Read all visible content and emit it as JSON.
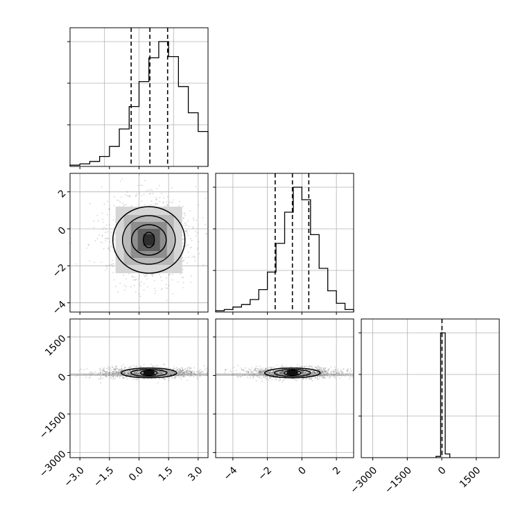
{
  "chart_data": [
    {
      "type": "histogram",
      "panel": "row0-col0",
      "parameter_index": 0,
      "xlim": [
        -3.5,
        3.5
      ],
      "bins": [
        {
          "x": -3.25,
          "count": 0.01
        },
        {
          "x": -2.75,
          "count": 0.02
        },
        {
          "x": -2.25,
          "count": 0.04
        },
        {
          "x": -1.75,
          "count": 0.08
        },
        {
          "x": -1.25,
          "count": 0.16
        },
        {
          "x": -0.75,
          "count": 0.3
        },
        {
          "x": -0.25,
          "count": 0.48
        },
        {
          "x": 0.25,
          "count": 0.68
        },
        {
          "x": 0.75,
          "count": 0.87
        },
        {
          "x": 1.25,
          "count": 1.0
        },
        {
          "x": 1.75,
          "count": 0.88
        },
        {
          "x": 2.25,
          "count": 0.64
        },
        {
          "x": 2.75,
          "count": 0.43
        },
        {
          "x": 3.25,
          "count": 0.28
        }
      ],
      "quantiles": [
        -0.4,
        0.55,
        1.45
      ],
      "grid": true
    },
    {
      "type": "heatmap",
      "panel": "row1-col0",
      "xlim": [
        -3.5,
        3.5
      ],
      "ylim": [
        -4.5,
        3
      ],
      "ylabel_ticks": [
        "−4",
        "−2",
        "0",
        "2"
      ],
      "yticks": [
        -4,
        -2,
        0,
        2
      ],
      "center": [
        0.5,
        -0.6
      ],
      "contour_radii": [
        [
          1.2,
          1.25
        ],
        [
          0.9,
          0.95
        ],
        [
          0.55,
          0.6
        ],
        [
          0.2,
          0.3
        ]
      ],
      "grid": true
    },
    {
      "type": "histogram",
      "panel": "row1-col1",
      "parameter_index": 1,
      "xlim": [
        -5,
        3
      ],
      "bins": [
        {
          "x": -4.75,
          "count": 0.01
        },
        {
          "x": -4.25,
          "count": 0.02
        },
        {
          "x": -3.75,
          "count": 0.04
        },
        {
          "x": -3.25,
          "count": 0.06
        },
        {
          "x": -2.75,
          "count": 0.1
        },
        {
          "x": -2.25,
          "count": 0.18
        },
        {
          "x": -1.75,
          "count": 0.32
        },
        {
          "x": -1.25,
          "count": 0.55
        },
        {
          "x": -0.75,
          "count": 0.8
        },
        {
          "x": -0.25,
          "count": 1.0
        },
        {
          "x": 0.25,
          "count": 0.9
        },
        {
          "x": 0.75,
          "count": 0.62
        },
        {
          "x": 1.25,
          "count": 0.35
        },
        {
          "x": 1.75,
          "count": 0.17
        },
        {
          "x": 2.25,
          "count": 0.07
        },
        {
          "x": 2.75,
          "count": 0.02
        }
      ],
      "quantiles": [
        -1.55,
        -0.55,
        0.4
      ],
      "grid": true
    },
    {
      "type": "heatmap",
      "panel": "row2-col0",
      "xlim": [
        -3.5,
        3.5
      ],
      "ylim": [
        -3200,
        2200
      ],
      "yticks": [
        -3000,
        -1500,
        0,
        1500
      ],
      "ylabel_ticks": [
        "−3000",
        "−1500",
        "0",
        "1500"
      ],
      "xticks": [
        -3.0,
        -1.5,
        0.0,
        1.5,
        3.0
      ],
      "xlabel_ticks": [
        "−3.0",
        "−1.5",
        "0.0",
        "1.5",
        "3.0"
      ],
      "center": [
        0.5,
        100
      ],
      "grid": true
    },
    {
      "type": "heatmap",
      "panel": "row2-col1",
      "xlim": [
        -5,
        3
      ],
      "ylim": [
        -3200,
        2200
      ],
      "xticks": [
        -4,
        -2,
        0,
        2
      ],
      "xlabel_ticks": [
        "−4",
        "−2",
        "0",
        "2"
      ],
      "center": [
        -0.55,
        100
      ],
      "grid": true
    },
    {
      "type": "histogram",
      "panel": "row2-col2",
      "parameter_index": 2,
      "xlim": [
        -3500,
        2500
      ],
      "xticks": [
        -3000,
        -1500,
        0,
        1500
      ],
      "xlabel_ticks": [
        "−3000",
        "−1500",
        "0",
        "1500"
      ],
      "bins": [
        {
          "x": -150,
          "count": 0.01
        },
        {
          "x": 50,
          "count": 1.0
        },
        {
          "x": 250,
          "count": 0.03
        }
      ],
      "quantiles": [
        10
      ],
      "grid": true
    }
  ]
}
